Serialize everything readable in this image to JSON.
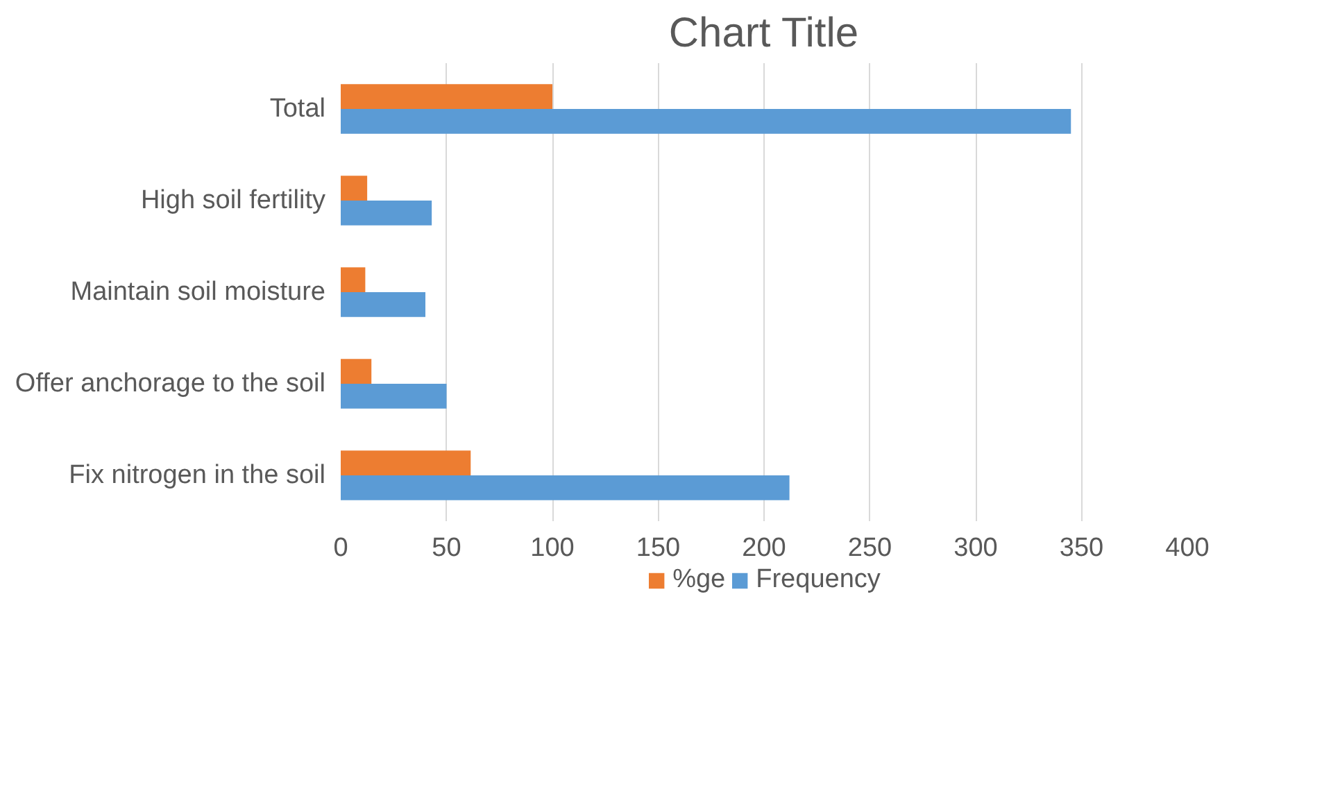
{
  "chart_data": {
    "type": "bar",
    "orientation": "horizontal",
    "title": "Chart Title",
    "categories": [
      "Total",
      "High soil fertility",
      "Maintain soil moisture",
      "Offer anchorage to the soil",
      "Fix nitrogen in the soil"
    ],
    "series": [
      {
        "name": "%ge",
        "color": "#ed7d31",
        "values": [
          100,
          12.5,
          11.6,
          14.5,
          61.4
        ]
      },
      {
        "name": "Frequency",
        "color": "#5b9bd5",
        "values": [
          345,
          43,
          40,
          50,
          212
        ]
      }
    ],
    "xlim": [
      0,
      400
    ],
    "xticks": [
      0,
      50,
      100,
      150,
      200,
      250,
      300,
      350,
      400
    ],
    "grid": "x",
    "legend": "bottom"
  }
}
